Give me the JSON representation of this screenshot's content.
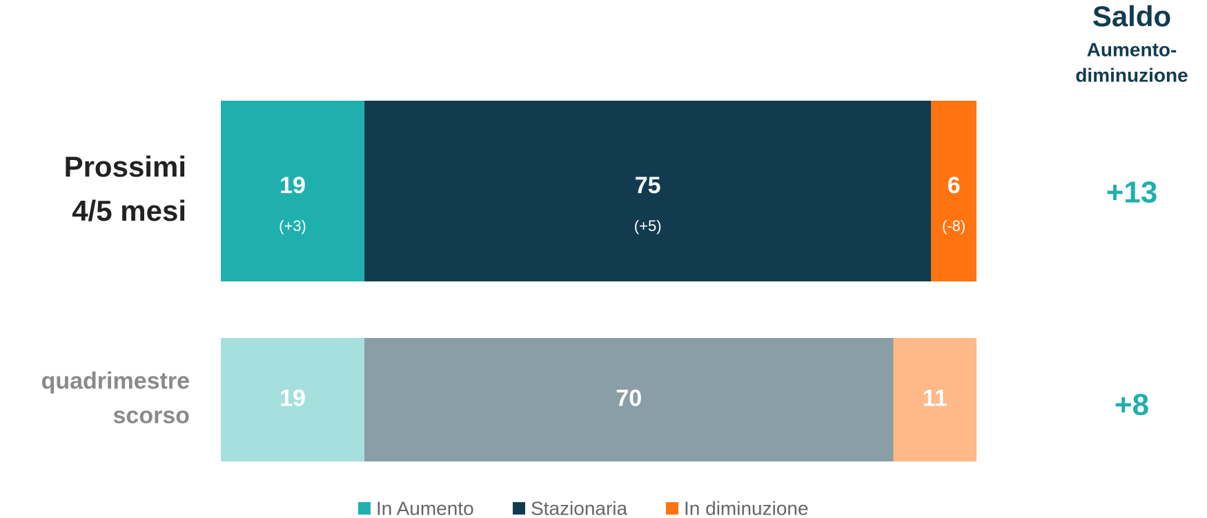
{
  "chart_data": {
    "type": "stacked-bar-horizontal",
    "categories": [
      [
        "Prossimi",
        "4/5 mesi"
      ],
      [
        "quadrimestre",
        "scorso"
      ]
    ],
    "category_colors": [
      "#222222",
      "#8a8a8a"
    ],
    "xlim": [
      0,
      100
    ],
    "series": [
      {
        "name": "In Aumento",
        "colors": [
          "#1fb0ae",
          "#a6e0de"
        ],
        "values": [
          19,
          19
        ],
        "changes": [
          3,
          null
        ],
        "change_labels": [
          "(+3)",
          null
        ]
      },
      {
        "name": "Stazionaria",
        "colors": [
          "#123b4f",
          "#899ea7"
        ],
        "values": [
          75,
          70
        ],
        "changes": [
          5,
          null
        ],
        "change_labels": [
          "(+5)",
          null
        ]
      },
      {
        "name": "In diminuzione",
        "colors": [
          "#ff7411",
          "#ffb887"
        ],
        "values": [
          6,
          11
        ],
        "changes": [
          -8,
          null
        ],
        "change_labels": [
          "(-8)",
          null
        ]
      }
    ],
    "balance": {
      "title": "Saldo",
      "subtitle": [
        "Aumento-",
        "diminuzione"
      ],
      "values": [
        13,
        8
      ],
      "value_labels": [
        "+13",
        "+8"
      ],
      "color": "#1fb0ae",
      "title_color": "#123b4f"
    },
    "legend": "bottom"
  }
}
